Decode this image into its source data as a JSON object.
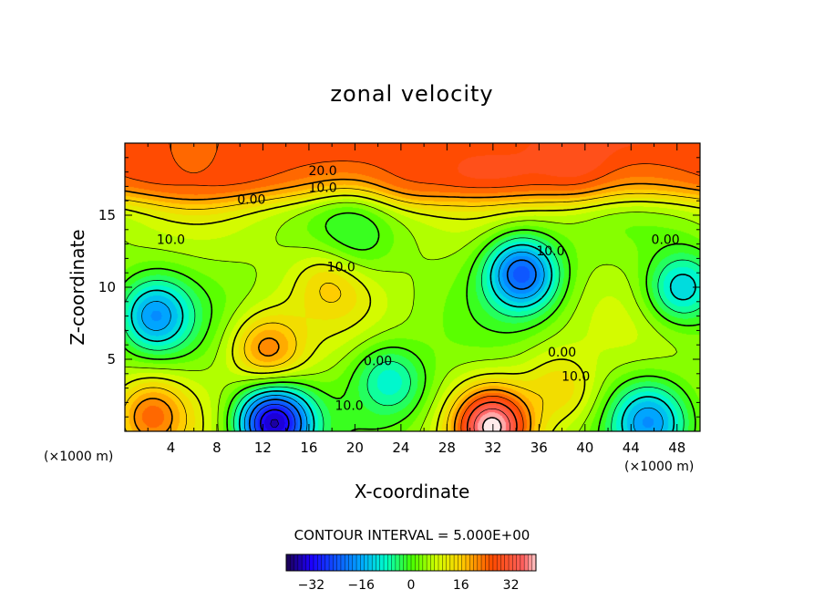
{
  "chart_data": {
    "type": "heatmap",
    "subtype": "filled-contour",
    "title": "zonal velocity",
    "xlabel": "X-coordinate",
    "ylabel": "Z-coordinate",
    "x_unit": "(×1000 m)",
    "z_unit": "(×1000 m)",
    "xlim": [
      0,
      50
    ],
    "ylim": [
      0,
      20
    ],
    "xticks": [
      4,
      8,
      12,
      16,
      20,
      24,
      28,
      32,
      36,
      40,
      44,
      48
    ],
    "yticks": [
      5,
      10,
      15
    ],
    "contour_interval_text": "CONTOUR INTERVAL = 5.000E+00",
    "contour_interval": 5,
    "colorscale": "rainbow",
    "colorbar_range": [
      -40,
      40
    ],
    "colorbar_ticks": [
      -32,
      -16,
      0,
      16,
      32
    ],
    "negative_contours": "dashed",
    "features": [
      {
        "x": 39,
        "y": 19.6,
        "value": 30
      },
      {
        "x": 25,
        "y": 19.2,
        "value": 26
      },
      {
        "x": 6,
        "y": 19.3,
        "value": 24
      },
      {
        "x": 2.4,
        "y": 1.0,
        "value": 24
      },
      {
        "x": 31.9,
        "y": 0.3,
        "value": 42
      },
      {
        "x": 13.0,
        "y": 0.6,
        "value": -36
      },
      {
        "x": 34.5,
        "y": 10.9,
        "value": -24
      },
      {
        "x": 2.7,
        "y": 8.0,
        "value": -18
      },
      {
        "x": 12.5,
        "y": 5.6,
        "value": 22
      },
      {
        "x": 18.2,
        "y": 10.3,
        "value": 18
      },
      {
        "x": 37.8,
        "y": 3.0,
        "value": 14
      },
      {
        "x": 45.5,
        "y": 0.6,
        "value": -18
      },
      {
        "x": 19.5,
        "y": 13.1,
        "value": -5
      },
      {
        "x": 23.0,
        "y": 3.4,
        "value": -9
      },
      {
        "x": 48.5,
        "y": 10.0,
        "value": -12
      }
    ],
    "contour_labels": [
      {
        "text": "20.0",
        "x": 17.2,
        "y": 17.8
      },
      {
        "text": "10.0",
        "x": 17.2,
        "y": 16.6
      },
      {
        "text": "0.00",
        "x": 11.0,
        "y": 15.8
      },
      {
        "text": "10.0",
        "x": 4.0,
        "y": 13.0
      },
      {
        "text": "10.0",
        "x": 18.8,
        "y": 11.1
      },
      {
        "text": "10.0",
        "x": 37.0,
        "y": 12.2
      },
      {
        "text": "0.00",
        "x": 47.0,
        "y": 13.0
      },
      {
        "text": "0.00",
        "x": 38.0,
        "y": 5.2
      },
      {
        "text": "0.00",
        "x": 22.0,
        "y": 4.6
      },
      {
        "text": "10.0",
        "x": 39.2,
        "y": 3.5
      },
      {
        "text": "10.0",
        "x": 19.5,
        "y": 1.5
      }
    ]
  }
}
